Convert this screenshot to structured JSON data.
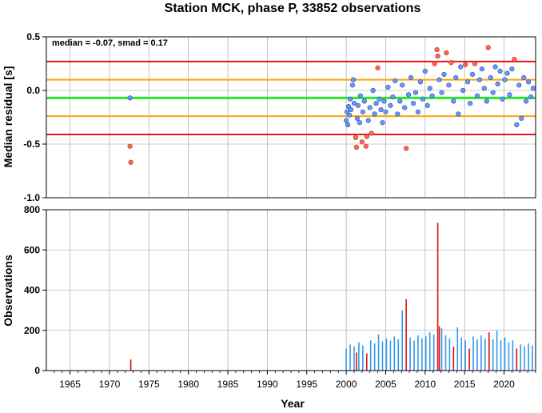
{
  "title": "Station MCK, phase P, 33852 observations",
  "colors": {
    "grid": "#999999",
    "red_line": "#ee1111",
    "orange_line": "#ffa500",
    "green_line": "#22ee22",
    "normal_point": "#6699ff",
    "outlier_point": "#ff6655",
    "bar_blue": "#3399ee",
    "bar_red": "#dd1111"
  },
  "chart_data": [
    {
      "type": "scatter",
      "ylabel": "Median residual [s]",
      "annotation": "median = -0.07, smad = 0.17",
      "xlim": [
        1962,
        2024
      ],
      "ylim": [
        -1.0,
        0.5
      ],
      "y_ticks": [
        "0.5",
        "0.0",
        "-0.5",
        "-1.0"
      ],
      "y_tick_values": [
        0.5,
        0.0,
        -0.5,
        -1.0
      ],
      "grid": true,
      "reference_lines": [
        {
          "y": 0.27,
          "color": "red"
        },
        {
          "y": 0.1,
          "color": "orange"
        },
        {
          "y": -0.07,
          "color": "green"
        },
        {
          "y": -0.24,
          "color": "orange"
        },
        {
          "y": -0.41,
          "color": "red"
        }
      ],
      "points": [
        {
          "x": 1972.6,
          "y": -0.07,
          "outlier": false
        },
        {
          "x": 1972.6,
          "y": -0.52,
          "outlier": true
        },
        {
          "x": 1972.7,
          "y": -0.67,
          "outlier": true
        },
        {
          "x": 2000.0,
          "y": -0.28,
          "outlier": false
        },
        {
          "x": 2000.1,
          "y": -0.2,
          "outlier": false
        },
        {
          "x": 2000.2,
          "y": -0.32,
          "outlier": false
        },
        {
          "x": 2000.3,
          "y": -0.15,
          "outlier": false
        },
        {
          "x": 2000.4,
          "y": -0.23,
          "outlier": false
        },
        {
          "x": 2000.5,
          "y": -0.08,
          "outlier": false
        },
        {
          "x": 2000.6,
          "y": -0.18,
          "outlier": false
        },
        {
          "x": 2000.8,
          "y": 0.05,
          "outlier": false
        },
        {
          "x": 2000.9,
          "y": 0.1,
          "outlier": false
        },
        {
          "x": 2001.0,
          "y": -0.12,
          "outlier": false
        },
        {
          "x": 2001.2,
          "y": -0.44,
          "outlier": true
        },
        {
          "x": 2001.3,
          "y": -0.53,
          "outlier": true
        },
        {
          "x": 2001.4,
          "y": -0.26,
          "outlier": false
        },
        {
          "x": 2001.5,
          "y": -0.14,
          "outlier": false
        },
        {
          "x": 2001.7,
          "y": -0.3,
          "outlier": false
        },
        {
          "x": 2001.8,
          "y": -0.05,
          "outlier": false
        },
        {
          "x": 2002.0,
          "y": -0.48,
          "outlier": true
        },
        {
          "x": 2002.1,
          "y": -0.2,
          "outlier": false
        },
        {
          "x": 2002.3,
          "y": -0.1,
          "outlier": false
        },
        {
          "x": 2002.5,
          "y": -0.52,
          "outlier": true
        },
        {
          "x": 2002.6,
          "y": -0.43,
          "outlier": true
        },
        {
          "x": 2002.8,
          "y": -0.28,
          "outlier": false
        },
        {
          "x": 2003.0,
          "y": -0.16,
          "outlier": false
        },
        {
          "x": 2003.2,
          "y": -0.4,
          "outlier": true
        },
        {
          "x": 2003.4,
          "y": 0.0,
          "outlier": false
        },
        {
          "x": 2003.6,
          "y": -0.22,
          "outlier": false
        },
        {
          "x": 2003.8,
          "y": -0.12,
          "outlier": false
        },
        {
          "x": 2004.0,
          "y": 0.21,
          "outlier": true
        },
        {
          "x": 2004.2,
          "y": -0.08,
          "outlier": false
        },
        {
          "x": 2004.4,
          "y": -0.18,
          "outlier": false
        },
        {
          "x": 2004.6,
          "y": -0.3,
          "outlier": false
        },
        {
          "x": 2004.8,
          "y": -0.1,
          "outlier": false
        },
        {
          "x": 2005.0,
          "y": -0.2,
          "outlier": false
        },
        {
          "x": 2005.3,
          "y": 0.03,
          "outlier": false
        },
        {
          "x": 2005.6,
          "y": -0.14,
          "outlier": false
        },
        {
          "x": 2005.9,
          "y": -0.06,
          "outlier": false
        },
        {
          "x": 2006.2,
          "y": 0.09,
          "outlier": false
        },
        {
          "x": 2006.5,
          "y": -0.22,
          "outlier": false
        },
        {
          "x": 2006.8,
          "y": -0.1,
          "outlier": false
        },
        {
          "x": 2007.1,
          "y": 0.05,
          "outlier": false
        },
        {
          "x": 2007.4,
          "y": -0.16,
          "outlier": false
        },
        {
          "x": 2007.6,
          "y": -0.54,
          "outlier": true
        },
        {
          "x": 2007.9,
          "y": -0.04,
          "outlier": false
        },
        {
          "x": 2008.2,
          "y": 0.12,
          "outlier": false
        },
        {
          "x": 2008.5,
          "y": -0.12,
          "outlier": false
        },
        {
          "x": 2008.8,
          "y": -0.02,
          "outlier": false
        },
        {
          "x": 2009.1,
          "y": -0.2,
          "outlier": false
        },
        {
          "x": 2009.4,
          "y": 0.08,
          "outlier": false
        },
        {
          "x": 2009.7,
          "y": -0.08,
          "outlier": false
        },
        {
          "x": 2010.0,
          "y": 0.18,
          "outlier": false
        },
        {
          "x": 2010.3,
          "y": -0.14,
          "outlier": false
        },
        {
          "x": 2010.6,
          "y": 0.02,
          "outlier": false
        },
        {
          "x": 2010.9,
          "y": -0.05,
          "outlier": false
        },
        {
          "x": 2011.2,
          "y": 0.25,
          "outlier": true
        },
        {
          "x": 2011.5,
          "y": 0.38,
          "outlier": true
        },
        {
          "x": 2011.6,
          "y": 0.32,
          "outlier": true
        },
        {
          "x": 2011.8,
          "y": 0.1,
          "outlier": false
        },
        {
          "x": 2012.1,
          "y": -0.02,
          "outlier": false
        },
        {
          "x": 2012.4,
          "y": 0.15,
          "outlier": false
        },
        {
          "x": 2012.7,
          "y": 0.35,
          "outlier": true
        },
        {
          "x": 2013.0,
          "y": 0.05,
          "outlier": false
        },
        {
          "x": 2013.3,
          "y": 0.26,
          "outlier": true
        },
        {
          "x": 2013.6,
          "y": -0.1,
          "outlier": false
        },
        {
          "x": 2013.9,
          "y": 0.12,
          "outlier": false
        },
        {
          "x": 2014.2,
          "y": -0.22,
          "outlier": false
        },
        {
          "x": 2014.5,
          "y": 0.22,
          "outlier": false
        },
        {
          "x": 2014.8,
          "y": 0.0,
          "outlier": false
        },
        {
          "x": 2015.1,
          "y": 0.24,
          "outlier": true
        },
        {
          "x": 2015.4,
          "y": 0.08,
          "outlier": false
        },
        {
          "x": 2015.7,
          "y": -0.12,
          "outlier": false
        },
        {
          "x": 2016.0,
          "y": 0.15,
          "outlier": false
        },
        {
          "x": 2016.3,
          "y": 0.25,
          "outlier": true
        },
        {
          "x": 2016.6,
          "y": -0.05,
          "outlier": false
        },
        {
          "x": 2016.9,
          "y": 0.1,
          "outlier": false
        },
        {
          "x": 2017.2,
          "y": 0.2,
          "outlier": false
        },
        {
          "x": 2017.5,
          "y": 0.02,
          "outlier": false
        },
        {
          "x": 2017.8,
          "y": -0.1,
          "outlier": false
        },
        {
          "x": 2018.0,
          "y": 0.4,
          "outlier": true
        },
        {
          "x": 2018.3,
          "y": 0.12,
          "outlier": false
        },
        {
          "x": 2018.6,
          "y": -0.02,
          "outlier": false
        },
        {
          "x": 2018.9,
          "y": 0.22,
          "outlier": false
        },
        {
          "x": 2019.2,
          "y": 0.06,
          "outlier": false
        },
        {
          "x": 2019.5,
          "y": 0.18,
          "outlier": false
        },
        {
          "x": 2019.8,
          "y": -0.08,
          "outlier": false
        },
        {
          "x": 2020.1,
          "y": 0.1,
          "outlier": false
        },
        {
          "x": 2020.4,
          "y": 0.16,
          "outlier": false
        },
        {
          "x": 2020.7,
          "y": -0.04,
          "outlier": false
        },
        {
          "x": 2021.0,
          "y": 0.2,
          "outlier": false
        },
        {
          "x": 2021.3,
          "y": 0.29,
          "outlier": true
        },
        {
          "x": 2021.6,
          "y": -0.32,
          "outlier": false
        },
        {
          "x": 2021.9,
          "y": 0.05,
          "outlier": false
        },
        {
          "x": 2022.2,
          "y": -0.26,
          "outlier": false
        },
        {
          "x": 2022.5,
          "y": 0.12,
          "outlier": false
        },
        {
          "x": 2022.8,
          "y": -0.1,
          "outlier": false
        },
        {
          "x": 2023.1,
          "y": 0.08,
          "outlier": false
        },
        {
          "x": 2023.4,
          "y": -0.06,
          "outlier": false
        },
        {
          "x": 2023.7,
          "y": 0.02,
          "outlier": false
        }
      ]
    },
    {
      "type": "bar",
      "ylabel": "Observations",
      "xlabel": "Year",
      "xlim": [
        1962,
        2024
      ],
      "ylim": [
        0,
        800
      ],
      "y_ticks": [
        "800",
        "600",
        "400",
        "200",
        "0"
      ],
      "y_tick_values": [
        800,
        600,
        400,
        200,
        0
      ],
      "x_ticks": [
        "1965",
        "1970",
        "1975",
        "1980",
        "1985",
        "1990",
        "1995",
        "2000",
        "2005",
        "2010",
        "2015",
        "2020"
      ],
      "x_tick_values": [
        1965,
        1970,
        1975,
        1980,
        1985,
        1990,
        1995,
        2000,
        2005,
        2010,
        2015,
        2020
      ],
      "grid": true,
      "bars": [
        {
          "x": 1972.7,
          "y": 55,
          "color": "red"
        },
        {
          "x": 2000.0,
          "y": 110,
          "color": "blue"
        },
        {
          "x": 2000.5,
          "y": 130,
          "color": "blue"
        },
        {
          "x": 2001.0,
          "y": 120,
          "color": "blue"
        },
        {
          "x": 2001.3,
          "y": 90,
          "color": "red"
        },
        {
          "x": 2001.6,
          "y": 140,
          "color": "blue"
        },
        {
          "x": 2002.1,
          "y": 125,
          "color": "blue"
        },
        {
          "x": 2002.6,
          "y": 85,
          "color": "red"
        },
        {
          "x": 2003.1,
          "y": 150,
          "color": "blue"
        },
        {
          "x": 2003.6,
          "y": 135,
          "color": "blue"
        },
        {
          "x": 2004.1,
          "y": 180,
          "color": "blue"
        },
        {
          "x": 2004.6,
          "y": 145,
          "color": "blue"
        },
        {
          "x": 2005.1,
          "y": 160,
          "color": "blue"
        },
        {
          "x": 2005.6,
          "y": 150,
          "color": "blue"
        },
        {
          "x": 2006.1,
          "y": 170,
          "color": "blue"
        },
        {
          "x": 2006.6,
          "y": 155,
          "color": "blue"
        },
        {
          "x": 2007.1,
          "y": 300,
          "color": "blue"
        },
        {
          "x": 2007.6,
          "y": 355,
          "color": "red"
        },
        {
          "x": 2008.1,
          "y": 165,
          "color": "blue"
        },
        {
          "x": 2008.6,
          "y": 150,
          "color": "blue"
        },
        {
          "x": 2009.1,
          "y": 175,
          "color": "blue"
        },
        {
          "x": 2009.6,
          "y": 160,
          "color": "blue"
        },
        {
          "x": 2010.1,
          "y": 170,
          "color": "blue"
        },
        {
          "x": 2010.6,
          "y": 190,
          "color": "blue"
        },
        {
          "x": 2011.1,
          "y": 180,
          "color": "blue"
        },
        {
          "x": 2011.6,
          "y": 735,
          "color": "red"
        },
        {
          "x": 2011.8,
          "y": 220,
          "color": "red"
        },
        {
          "x": 2012.1,
          "y": 210,
          "color": "blue"
        },
        {
          "x": 2012.6,
          "y": 175,
          "color": "blue"
        },
        {
          "x": 2013.1,
          "y": 160,
          "color": "blue"
        },
        {
          "x": 2013.6,
          "y": 120,
          "color": "red"
        },
        {
          "x": 2014.1,
          "y": 215,
          "color": "blue"
        },
        {
          "x": 2014.6,
          "y": 165,
          "color": "blue"
        },
        {
          "x": 2015.1,
          "y": 150,
          "color": "blue"
        },
        {
          "x": 2015.6,
          "y": 110,
          "color": "red"
        },
        {
          "x": 2016.1,
          "y": 170,
          "color": "blue"
        },
        {
          "x": 2016.6,
          "y": 155,
          "color": "blue"
        },
        {
          "x": 2017.1,
          "y": 175,
          "color": "blue"
        },
        {
          "x": 2017.6,
          "y": 160,
          "color": "blue"
        },
        {
          "x": 2018.1,
          "y": 190,
          "color": "red"
        },
        {
          "x": 2018.6,
          "y": 155,
          "color": "blue"
        },
        {
          "x": 2019.1,
          "y": 200,
          "color": "blue"
        },
        {
          "x": 2019.6,
          "y": 150,
          "color": "blue"
        },
        {
          "x": 2020.1,
          "y": 165,
          "color": "blue"
        },
        {
          "x": 2020.6,
          "y": 140,
          "color": "blue"
        },
        {
          "x": 2021.1,
          "y": 150,
          "color": "blue"
        },
        {
          "x": 2021.6,
          "y": 110,
          "color": "red"
        },
        {
          "x": 2022.1,
          "y": 130,
          "color": "blue"
        },
        {
          "x": 2022.6,
          "y": 120,
          "color": "blue"
        },
        {
          "x": 2023.1,
          "y": 135,
          "color": "blue"
        },
        {
          "x": 2023.6,
          "y": 125,
          "color": "blue"
        }
      ]
    }
  ]
}
